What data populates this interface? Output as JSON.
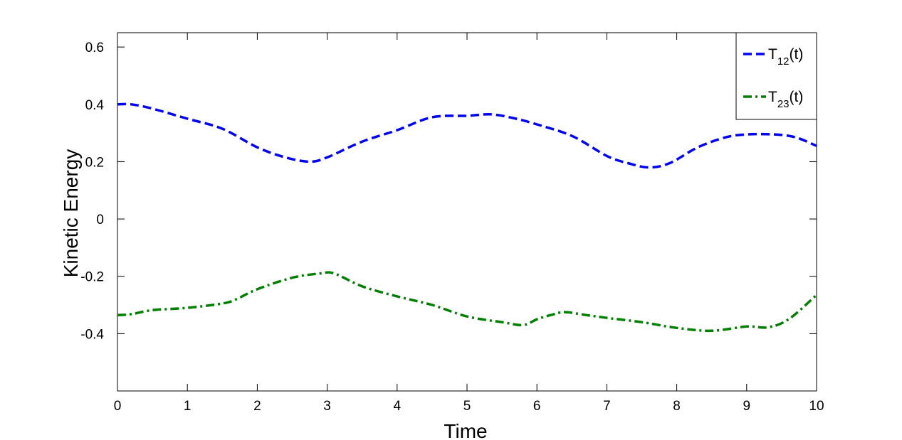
{
  "chart_data": {
    "type": "line",
    "xlabel": "Time",
    "ylabel": "Kinetic Energy",
    "xlim": [
      0,
      10
    ],
    "ylim": [
      -0.6,
      0.65
    ],
    "xticks": [
      0,
      1,
      2,
      3,
      4,
      5,
      6,
      7,
      8,
      9,
      10
    ],
    "xtick_labels": [
      "0",
      "1",
      "2",
      "3",
      "4",
      "5",
      "6",
      "7",
      "8",
      "9",
      "10"
    ],
    "yticks": [
      -0.4,
      -0.2,
      0,
      0.2,
      0.4,
      0.6
    ],
    "ytick_labels": [
      "-0.4",
      "-0.2",
      "0",
      "0.2",
      "0.4",
      "0.6"
    ],
    "grid": false,
    "legend_position": "top-right",
    "series": [
      {
        "name": "T12(t)",
        "legend_base": "T",
        "legend_sub": "12",
        "legend_suffix": "(t)",
        "color": "#0000ff",
        "style": "dashed",
        "x": [
          0,
          0.2,
          0.5,
          1.0,
          1.5,
          2.0,
          2.4,
          2.75,
          3.0,
          3.5,
          4.0,
          4.5,
          5.0,
          5.35,
          5.7,
          6.0,
          6.5,
          7.0,
          7.3,
          7.6,
          7.9,
          8.3,
          8.7,
          9.0,
          9.4,
          9.7,
          10.0
        ],
        "y": [
          0.4,
          0.4,
          0.385,
          0.35,
          0.315,
          0.25,
          0.215,
          0.2,
          0.215,
          0.27,
          0.31,
          0.355,
          0.36,
          0.365,
          0.35,
          0.33,
          0.29,
          0.22,
          0.195,
          0.18,
          0.195,
          0.25,
          0.285,
          0.295,
          0.295,
          0.285,
          0.255
        ]
      },
      {
        "name": "T23(t)",
        "legend_base": "T",
        "legend_sub": "23",
        "legend_suffix": "(t)",
        "color": "#007f00",
        "style": "dashdot",
        "x": [
          0,
          0.2,
          0.5,
          1.0,
          1.5,
          1.7,
          2.0,
          2.5,
          2.9,
          3.1,
          3.5,
          4.0,
          4.5,
          5.0,
          5.5,
          5.8,
          6.0,
          6.2,
          6.4,
          6.7,
          7.0,
          7.5,
          8.0,
          8.5,
          9.0,
          9.3,
          9.6,
          10.0
        ],
        "y": [
          -0.335,
          -0.332,
          -0.318,
          -0.31,
          -0.295,
          -0.28,
          -0.245,
          -0.205,
          -0.19,
          -0.19,
          -0.235,
          -0.27,
          -0.3,
          -0.34,
          -0.36,
          -0.37,
          -0.35,
          -0.335,
          -0.325,
          -0.335,
          -0.345,
          -0.36,
          -0.38,
          -0.39,
          -0.375,
          -0.378,
          -0.35,
          -0.265
        ]
      }
    ]
  }
}
